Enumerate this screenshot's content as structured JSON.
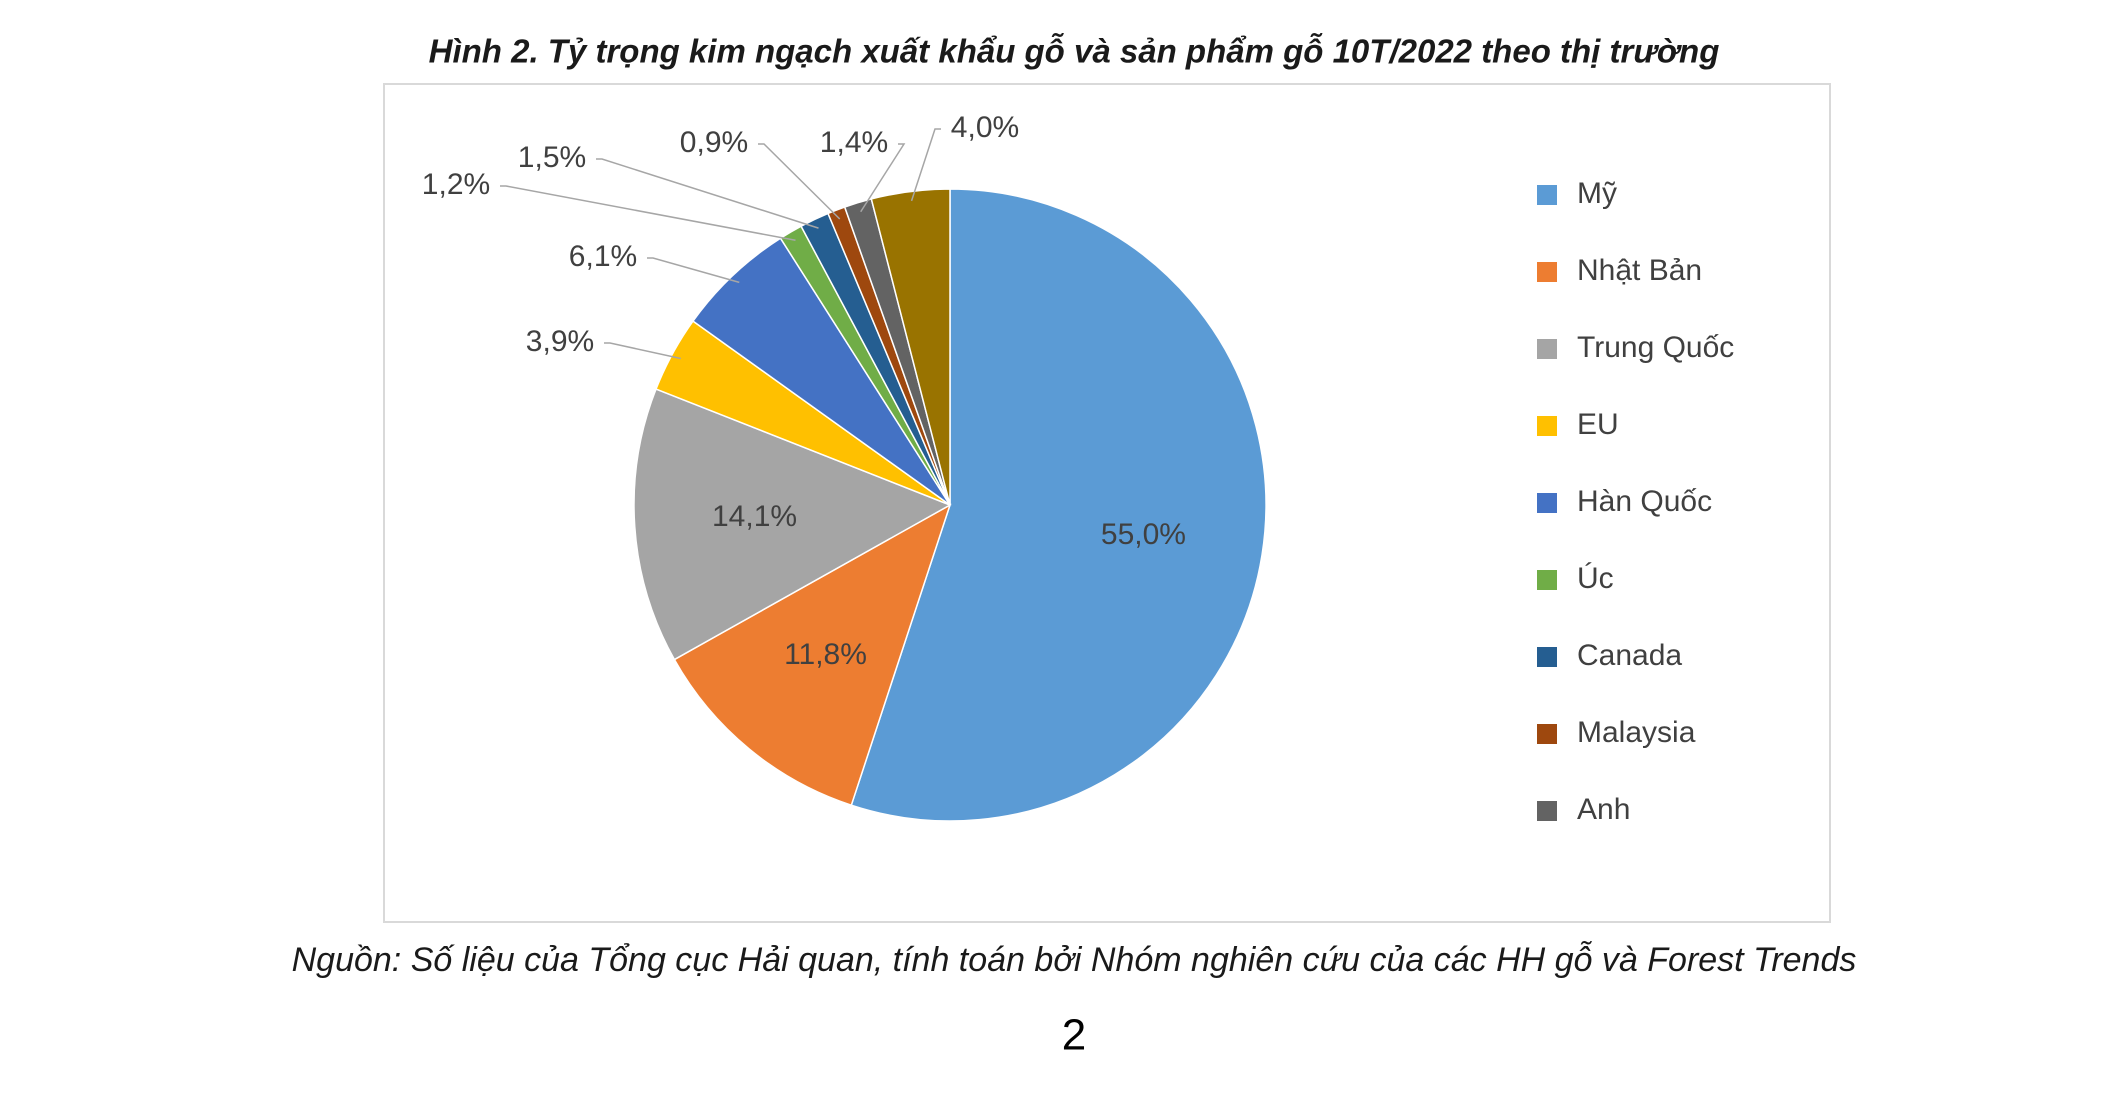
{
  "chart_data": {
    "type": "pie",
    "title": "Hình 2. Tỷ trọng kim ngạch xuất khẩu gỗ và sản phẩm gỗ 10T/2022 theo thị trường",
    "categories": [
      "Mỹ",
      "Nhật Bản",
      "Trung Quốc",
      "EU",
      "Hàn Quốc",
      "Úc",
      "Canada",
      "Malaysia",
      "Anh",
      null
    ],
    "values": [
      55.0,
      11.8,
      14.1,
      3.9,
      6.1,
      1.2,
      1.5,
      0.9,
      1.4,
      4.0
    ],
    "value_labels": [
      "55,0%",
      "11,8%",
      "14,1%",
      "3,9%",
      "6,1%",
      "1,2%",
      "1,5%",
      "0,9%",
      "1,4%",
      "4,0%"
    ],
    "colors": [
      "#5b9bd5",
      "#ed7d31",
      "#a5a5a5",
      "#ffc000",
      "#4472c4",
      "#70ad47",
      "#255e91",
      "#9e480e",
      "#636363",
      "#997300"
    ],
    "legend": "right",
    "source": "Nguồn: Số liệu của Tổng cục Hải quan, tính toán bởi Nhóm nghiên cứu của các HH gỗ và Forest Trends"
  },
  "page_number": "2"
}
